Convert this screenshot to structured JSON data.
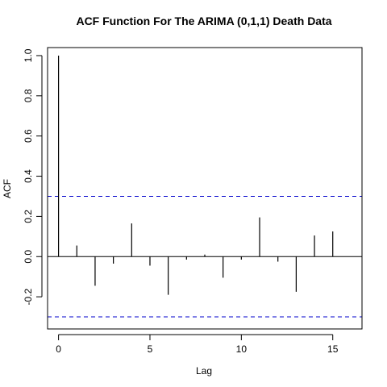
{
  "chart_data": {
    "type": "bar",
    "title": "ACF Function For The ARIMA (0,1,1) Death Data",
    "xlabel": "Lag",
    "ylabel": "ACF",
    "xlim": [
      -0.6,
      16.6
    ],
    "ylim": [
      -0.36,
      1.04
    ],
    "x_ticks": [
      0,
      5,
      10,
      15
    ],
    "y_ticks": [
      -0.2,
      0.0,
      0.2,
      0.4,
      0.6,
      0.8,
      1.0
    ],
    "grid": false,
    "confidence_bounds": [
      0.3,
      -0.3
    ],
    "colors": {
      "bars": "#000000",
      "bounds": "#0000cc",
      "frame": "#000000"
    },
    "lags": [
      0,
      1,
      2,
      3,
      4,
      5,
      6,
      7,
      8,
      9,
      10,
      11,
      12,
      13,
      14,
      15
    ],
    "values": [
      1.0,
      0.055,
      -0.145,
      -0.035,
      0.165,
      -0.045,
      -0.19,
      -0.015,
      0.01,
      -0.105,
      -0.015,
      0.195,
      -0.025,
      -0.175,
      0.105,
      0.125
    ]
  }
}
